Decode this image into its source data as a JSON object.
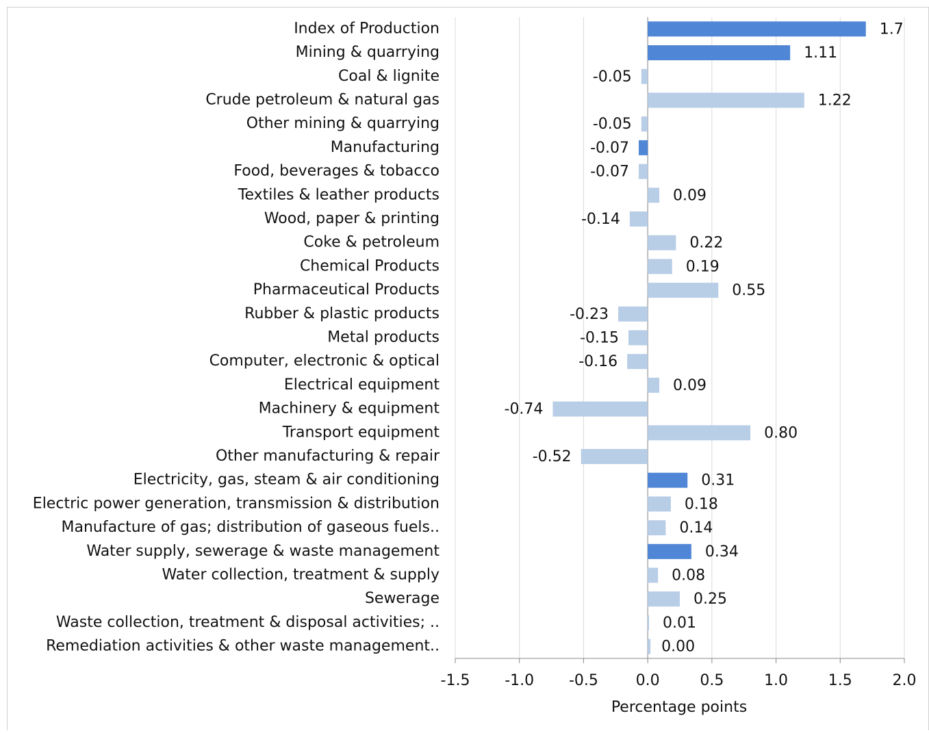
{
  "chart_data": {
    "type": "hbar",
    "categories": [
      "Index of Production",
      "Mining & quarrying",
      "Coal & lignite",
      "Crude petroleum & natural gas",
      "Other mining & quarrying",
      "Manufacturing",
      "Food, beverages & tobacco",
      "Textiles & leather products",
      "Wood, paper & printing",
      "Coke & petroleum",
      "Chemical Products",
      "Pharmaceutical  Products",
      "Rubber & plastic products",
      "Metal products",
      "Computer, electronic & optical",
      "Electrical equipment",
      "Machinery & equipment",
      "Transport equipment",
      "Other manufacturing & repair",
      "Electricity, gas, steam & air conditioning",
      "Electric power generation, transmission & distribution",
      "Manufacture of gas; distribution of gaseous fuels..",
      "Water supply, sewerage & waste management",
      "Water collection, treatment & supply",
      "Sewerage",
      "Waste collection, treatment & disposal activities; ..",
      "Remediation activities & other waste management.."
    ],
    "values": [
      1.7,
      1.11,
      -0.05,
      1.22,
      -0.05,
      -0.07,
      -0.07,
      0.09,
      -0.14,
      0.22,
      0.19,
      0.55,
      -0.23,
      -0.15,
      -0.16,
      0.09,
      -0.74,
      0.8,
      -0.52,
      0.31,
      0.18,
      0.14,
      0.34,
      0.08,
      0.25,
      0.01,
      0.0
    ],
    "value_labels": [
      "1.7",
      "1.11",
      "-0.05",
      "1.22",
      "-0.05",
      "-0.07",
      "-0.07",
      "0.09",
      "-0.14",
      "0.22",
      "0.19",
      "0.55",
      "-0.23",
      "-0.15",
      "-0.16",
      "0.09",
      "-0.74",
      "0.80",
      "-0.52",
      "0.31",
      "0.18",
      "0.14",
      "0.34",
      "0.08",
      "0.25",
      "0.01",
      "0.00"
    ],
    "colors": [
      "#4f87d6",
      "#4f87d6",
      "#b8cde6",
      "#b8cde6",
      "#b8cde6",
      "#4f87d6",
      "#b8cde6",
      "#b8cde6",
      "#b8cde6",
      "#b8cde6",
      "#b8cde6",
      "#b8cde6",
      "#b8cde6",
      "#b8cde6",
      "#b8cde6",
      "#b8cde6",
      "#b8cde6",
      "#b8cde6",
      "#b8cde6",
      "#4f87d6",
      "#b8cde6",
      "#b8cde6",
      "#4f87d6",
      "#b8cde6",
      "#b8cde6",
      "#b8cde6",
      "#b8cde6"
    ],
    "x_label": "Percentage points",
    "xlim": [
      -1.5,
      2.0
    ],
    "xticks": [
      -1.5,
      {
        "value": -1.0,
        "label": "-1.0"
      },
      -0.5,
      {
        "value": 0.0,
        "label": "0.0"
      },
      0.5,
      {
        "value": 1.0,
        "label": "1.0"
      },
      1.5,
      {
        "value": 2.0,
        "label": "2.0"
      }
    ],
    "grid": true
  }
}
